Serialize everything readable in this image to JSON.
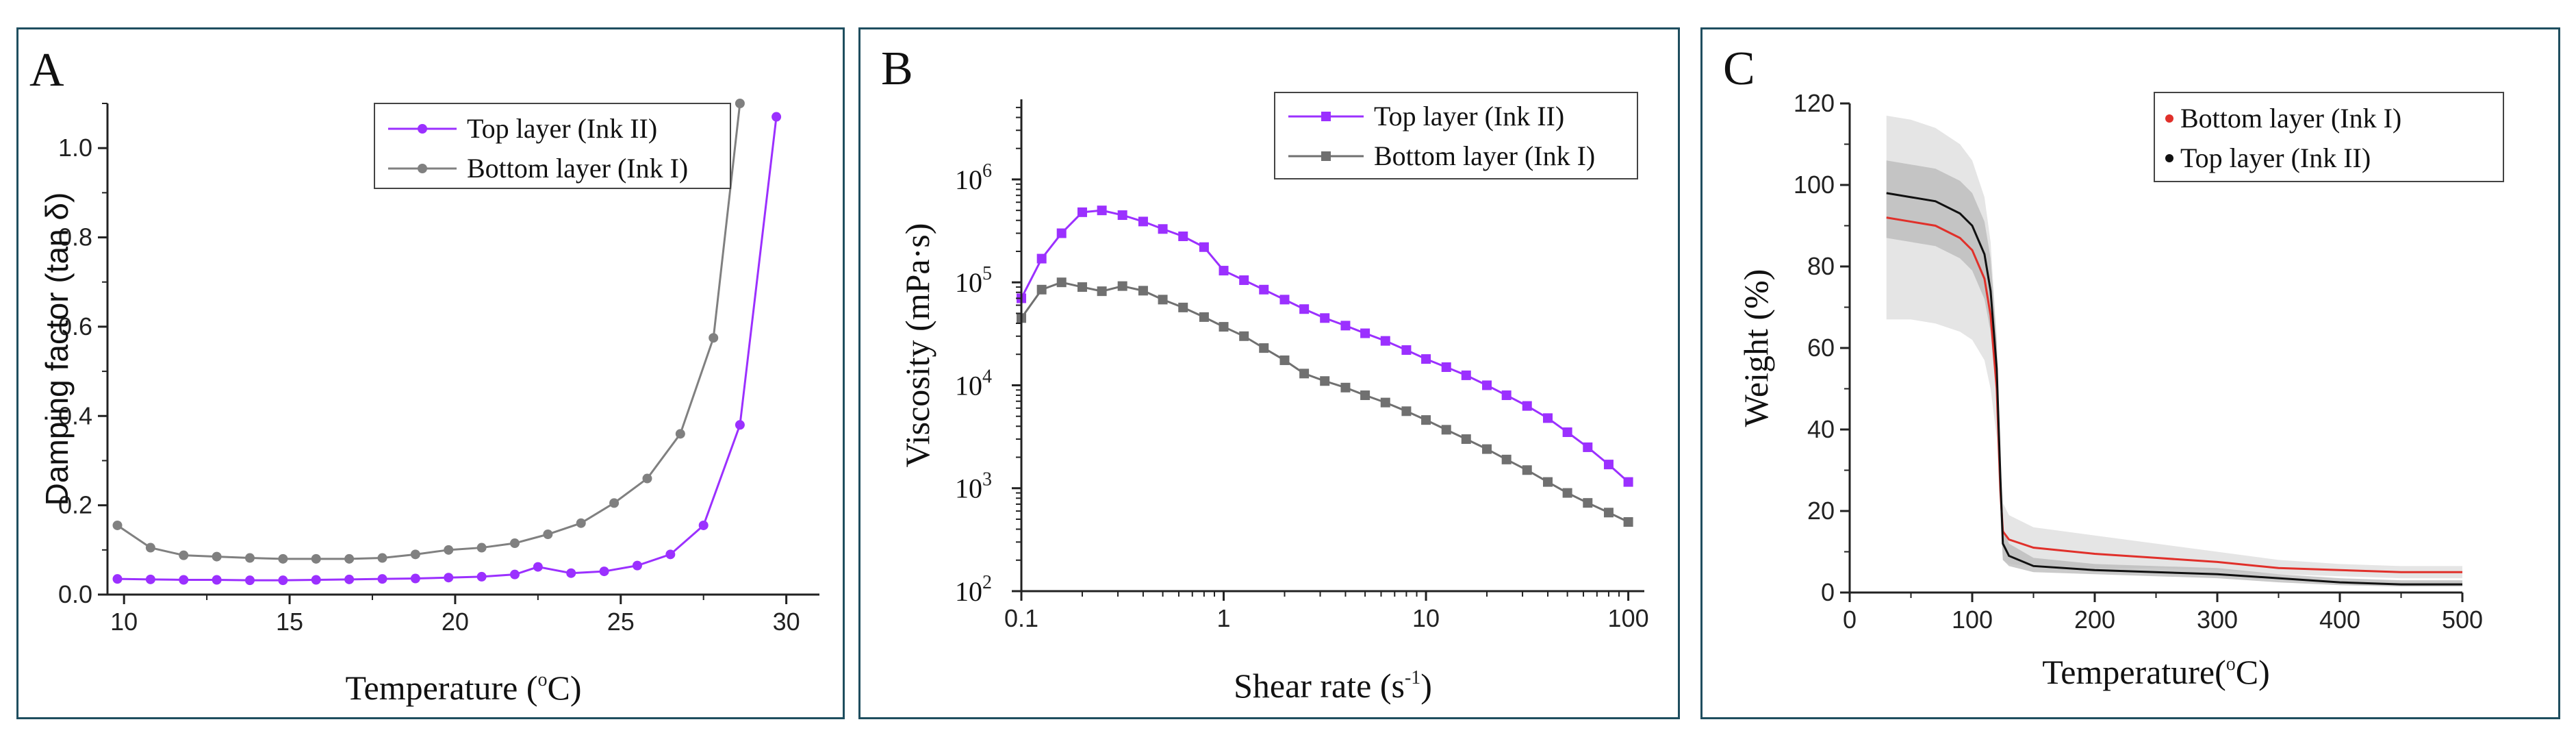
{
  "chart_data": [
    {
      "panel": "A",
      "type": "line",
      "xlabel_main": "Temperature (",
      "xlabel_sup": "o",
      "xlabel_tail": "C)",
      "ylabel": "Damping factor (tan δ)",
      "xlim": [
        9.5,
        31
      ],
      "ylim": [
        0,
        1.1
      ],
      "xticks": [
        10,
        15,
        20,
        25,
        30
      ],
      "yticks": [
        0.0,
        0.2,
        0.4,
        0.6,
        0.8,
        1.0
      ],
      "ytick_labels": [
        "0.0",
        "0.2",
        "0.4",
        "0.6",
        "0.8",
        "1.0"
      ],
      "legend": [
        "Top layer (Ink II)",
        "Bottom layer (Ink I)"
      ],
      "series": [
        {
          "name": "Top layer (Ink II)",
          "color": "#9b30ff",
          "marker": "circle",
          "x": [
            9.8,
            10.8,
            11.8,
            12.8,
            13.8,
            14.8,
            15.8,
            16.8,
            17.8,
            18.8,
            19.8,
            20.8,
            21.8,
            22.5,
            23.5,
            24.5,
            25.5,
            26.5,
            27.5,
            28.6,
            29.7
          ],
          "y": [
            0.035,
            0.034,
            0.033,
            0.033,
            0.032,
            0.032,
            0.033,
            0.034,
            0.035,
            0.036,
            0.038,
            0.04,
            0.045,
            0.062,
            0.048,
            0.052,
            0.065,
            0.09,
            0.155,
            0.38,
            1.07
          ]
        },
        {
          "name": "Bottom layer (Ink I)",
          "color": "#808080",
          "marker": "circle",
          "x": [
            9.8,
            10.8,
            11.8,
            12.8,
            13.8,
            14.8,
            15.8,
            16.8,
            17.8,
            18.8,
            19.8,
            20.8,
            21.8,
            22.8,
            23.8,
            24.8,
            25.8,
            26.8,
            27.8,
            28.6
          ],
          "y": [
            0.155,
            0.105,
            0.088,
            0.085,
            0.082,
            0.08,
            0.08,
            0.08,
            0.082,
            0.09,
            0.1,
            0.105,
            0.115,
            0.135,
            0.16,
            0.205,
            0.26,
            0.36,
            0.575,
            1.1
          ]
        }
      ]
    },
    {
      "panel": "B",
      "type": "line",
      "xscale": "log",
      "yscale": "log",
      "xlabel_main": "Shear rate (s",
      "xlabel_sup": "-1",
      "xlabel_tail": ")",
      "ylabel": "Viscosity (mPa·s)",
      "xlim": [
        0.1,
        120
      ],
      "ylim": [
        100,
        6000000
      ],
      "xticks": [
        0.1,
        1,
        10,
        100
      ],
      "xtick_labels": [
        "0.1",
        "1",
        "10",
        "100"
      ],
      "yticks": [
        100,
        1000,
        10000,
        100000,
        1000000
      ],
      "ytick_exponents": [
        "2",
        "3",
        "4",
        "5",
        "6"
      ],
      "ytick_base": "10",
      "legend": [
        "Top layer (Ink II)",
        "Bottom layer (Ink I)"
      ],
      "series": [
        {
          "name": "Top layer (Ink II)",
          "color": "#9b30ff",
          "marker": "square",
          "x": [
            0.1,
            0.126,
            0.158,
            0.2,
            0.25,
            0.316,
            0.4,
            0.5,
            0.63,
            0.8,
            1.0,
            1.26,
            1.58,
            2.0,
            2.5,
            3.16,
            4.0,
            5.0,
            6.3,
            8.0,
            10,
            12.6,
            15.8,
            20,
            25,
            31.6,
            40,
            50,
            63,
            80,
            100
          ],
          "y": [
            70000,
            170000,
            300000,
            480000,
            500000,
            450000,
            390000,
            330000,
            280000,
            220000,
            130000,
            105000,
            85000,
            68000,
            55000,
            45000,
            38000,
            32000,
            27000,
            22000,
            18000,
            15000,
            12500,
            10000,
            8000,
            6300,
            4800,
            3500,
            2500,
            1700,
            1150
          ]
        },
        {
          "name": "Bottom layer (Ink I)",
          "color": "#707070",
          "marker": "square",
          "x": [
            0.1,
            0.126,
            0.158,
            0.2,
            0.25,
            0.316,
            0.4,
            0.5,
            0.63,
            0.8,
            1.0,
            1.26,
            1.58,
            2.0,
            2.5,
            3.16,
            4.0,
            5.0,
            6.3,
            8.0,
            10,
            12.6,
            15.8,
            20,
            25,
            31.6,
            40,
            50,
            63,
            80,
            100
          ],
          "y": [
            45000,
            85000,
            100000,
            90000,
            82000,
            92000,
            83000,
            68000,
            57000,
            46000,
            37000,
            30000,
            23000,
            17500,
            13000,
            11000,
            9500,
            8000,
            6800,
            5600,
            4600,
            3700,
            3000,
            2400,
            1900,
            1500,
            1150,
            900,
            720,
            580,
            470
          ]
        }
      ]
    },
    {
      "panel": "C",
      "type": "line",
      "xlabel_main": "Temperature(",
      "xlabel_sup": "o",
      "xlabel_tail": "C)",
      "ylabel": "Weight (%)",
      "xlim": [
        0,
        500
      ],
      "ylim": [
        0,
        120
      ],
      "xticks": [
        0,
        100,
        200,
        300,
        400,
        500
      ],
      "yticks": [
        0,
        20,
        40,
        60,
        80,
        100,
        120
      ],
      "legend": [
        "Bottom layer (Ink I)",
        "Top layer (Ink II)"
      ],
      "series": [
        {
          "name": "Bottom layer (Ink I)",
          "color": "#e0302a",
          "x": [
            30,
            50,
            70,
            90,
            100,
            110,
            115,
            120,
            123,
            125,
            130,
            150,
            200,
            250,
            300,
            350,
            400,
            450,
            500
          ],
          "y": [
            92,
            91,
            90,
            87,
            84,
            77,
            68,
            50,
            25,
            15,
            13,
            11,
            9.5,
            8.5,
            7.5,
            6.0,
            5.5,
            5.0,
            5.0
          ],
          "band_low": [
            67,
            67,
            66,
            64,
            62,
            57,
            50,
            38,
            18,
            8,
            7,
            6.5,
            6,
            6,
            5.5,
            4.5,
            4,
            3.5,
            3.5
          ],
          "band_high": [
            117,
            116,
            114,
            110,
            106,
            97,
            86,
            62,
            32,
            22,
            19,
            16,
            14,
            12,
            10,
            8,
            7,
            6.5,
            6.5
          ]
        },
        {
          "name": "Top layer (Ink II)",
          "color": "#111111",
          "x": [
            30,
            50,
            70,
            90,
            100,
            110,
            115,
            120,
            123,
            125,
            130,
            150,
            200,
            250,
            300,
            350,
            400,
            450,
            500
          ],
          "y": [
            98,
            97,
            96,
            93,
            90,
            83,
            74,
            55,
            28,
            12,
            9,
            6.5,
            5.5,
            5.0,
            4.5,
            3.5,
            2.5,
            2.0,
            2.0
          ],
          "band_low": [
            87,
            86,
            85,
            82,
            79,
            72,
            64,
            47,
            22,
            8,
            6.5,
            5,
            4.5,
            4,
            3.5,
            2.5,
            1.8,
            1.5,
            1.5
          ],
          "band_high": [
            106,
            105,
            104,
            101,
            98,
            91,
            82,
            62,
            33,
            16,
            12,
            8.5,
            7,
            6.5,
            6,
            4.5,
            3.5,
            3,
            3
          ]
        }
      ]
    }
  ],
  "panels": {
    "a_letter": "A",
    "b_letter": "B",
    "c_letter": "C"
  }
}
